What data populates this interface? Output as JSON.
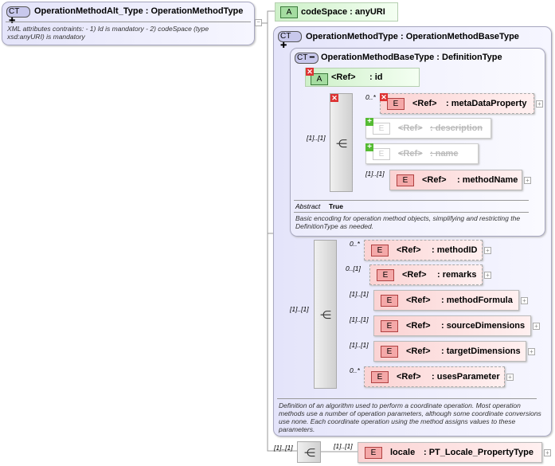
{
  "root": {
    "badge": "CT",
    "name": "OperationMethodAlt_Type",
    "base": ": OperationMethodType",
    "description": "XML attributes contraints: - 1) Id is mandatory - 2) codeSpace (type xsd:anyURI) is mandatory"
  },
  "codeSpace": {
    "tag": "A",
    "label": "codeSpace : anyURI"
  },
  "methodType": {
    "badge": "CT",
    "name": "OperationMethodType",
    "base": ": OperationMethodBaseType",
    "description": "Definition of an algorithm used to perform a coordinate operation. Most operation methods use a number of operation parameters, although some coordinate conversions use none. Each coordinate operation using the method assigns values to these parameters."
  },
  "baseType": {
    "badge": "CT",
    "name": "OperationMethodBaseType",
    "base": ": DefinitionType",
    "abstract_label": "Abstract",
    "abstract_value": "True",
    "description": "Basic encoding for operation method objects, simplifying and restricting the DefinitionType as needed."
  },
  "idAttr": {
    "tag": "A",
    "ref": "<Ref>",
    "name": ": id"
  },
  "seq1": {
    "cardinality": "[1]..[1]",
    "elements": [
      {
        "ref": "<Ref>",
        "name": ": metaDataProperty",
        "card": "0..*",
        "optional": true,
        "disabled": false
      },
      {
        "ref": "<Ref>",
        "name": ": description",
        "card": "",
        "optional": false,
        "disabled": true
      },
      {
        "ref": "<Ref>",
        "name": ": name",
        "card": "",
        "optional": false,
        "disabled": true
      },
      {
        "ref": "<Ref>",
        "name": ": methodName",
        "card": "[1]..[1]",
        "optional": false,
        "disabled": false
      }
    ]
  },
  "seq2": {
    "cardinality": "[1]..[1]",
    "elements": [
      {
        "ref": "<Ref>",
        "name": ": methodID",
        "card": "0..*",
        "optional": true,
        "disabled": false
      },
      {
        "ref": "<Ref>",
        "name": ": remarks",
        "card": "0..[1]",
        "optional": true,
        "disabled": false
      },
      {
        "ref": "<Ref>",
        "name": ": methodFormula",
        "card": "[1]..[1]",
        "optional": false,
        "disabled": false
      },
      {
        "ref": "<Ref>",
        "name": ": sourceDimensions",
        "card": "[1]..[1]",
        "optional": false,
        "disabled": false
      },
      {
        "ref": "<Ref>",
        "name": ": targetDimensions",
        "card": "[1]..[1]",
        "optional": false,
        "disabled": false
      },
      {
        "ref": "<Ref>",
        "name": ": usesParameter",
        "card": "0..*",
        "optional": true,
        "disabled": false
      }
    ]
  },
  "seq3": {
    "cardinality": "[1]..[1]",
    "elements": [
      {
        "ref": "locale",
        "name": ": PT_Locale_PropertyType",
        "card": "[1]..[1]",
        "optional": false,
        "disabled": false
      }
    ]
  },
  "element_tag": "E"
}
